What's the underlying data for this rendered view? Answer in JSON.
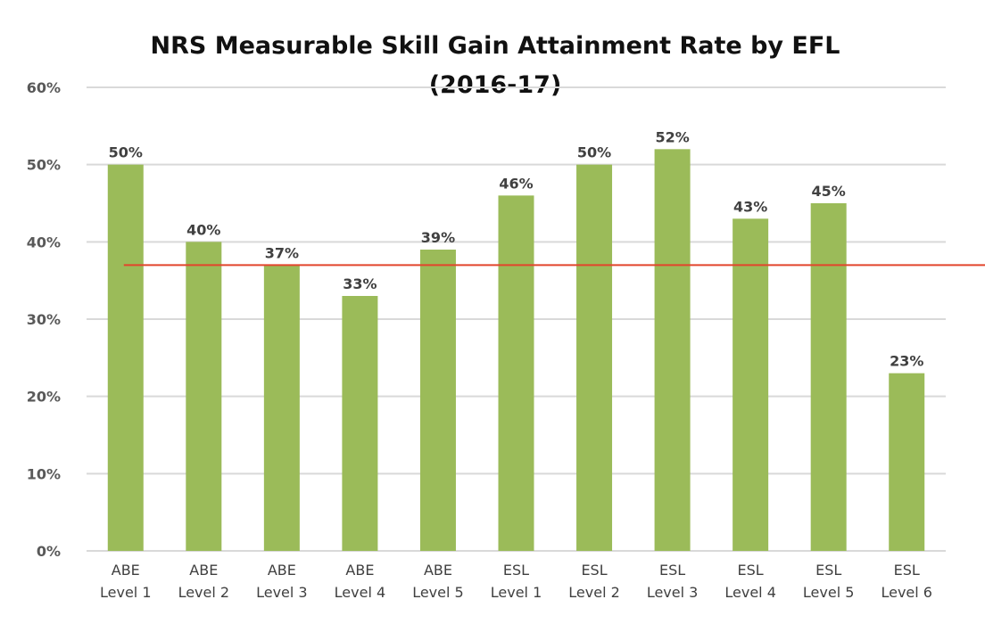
{
  "chart_data": {
    "type": "bar",
    "title": [
      "NRS Measurable Skill Gain Attainment Rate by EFL",
      "(2016-17)"
    ],
    "categories": [
      [
        "ABE",
        "Level 1"
      ],
      [
        "ABE",
        "Level 2"
      ],
      [
        "ABE",
        "Level 3"
      ],
      [
        "ABE",
        "Level 4"
      ],
      [
        "ABE",
        "Level 5"
      ],
      [
        "ESL",
        "Level 1"
      ],
      [
        "ESL",
        "Level 2"
      ],
      [
        "ESL",
        "Level 3"
      ],
      [
        "ESL",
        "Level 4"
      ],
      [
        "ESL",
        "Level 5"
      ],
      [
        "ESL",
        "Level 6"
      ]
    ],
    "values": [
      50,
      40,
      37,
      33,
      39,
      46,
      50,
      52,
      43,
      45,
      23
    ],
    "data_labels": [
      "50%",
      "40%",
      "37%",
      "33%",
      "39%",
      "46%",
      "50%",
      "52%",
      "43%",
      "45%",
      "23%"
    ],
    "ylim": [
      0,
      60
    ],
    "yticks": [
      "0%",
      "10%",
      "20%",
      "30%",
      "40%",
      "50%",
      "60%"
    ],
    "reference_line": 37,
    "grid": true,
    "colors": {
      "bar": "#9BBB59",
      "reference_line": "#E2452C",
      "grid": "#D9D9D9"
    }
  }
}
